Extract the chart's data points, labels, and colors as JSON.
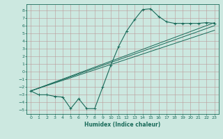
{
  "xlabel": "Humidex (Indice chaleur)",
  "bg_color": "#cce8e0",
  "grid_color": "#bb9999",
  "line_color": "#1a6b5a",
  "xlim": [
    -0.5,
    23.5
  ],
  "ylim": [
    -5.5,
    8.8
  ],
  "xticks": [
    0,
    1,
    2,
    3,
    4,
    5,
    6,
    7,
    8,
    9,
    10,
    11,
    12,
    13,
    14,
    15,
    16,
    17,
    18,
    19,
    20,
    21,
    22,
    23
  ],
  "yticks": [
    -5,
    -4,
    -3,
    -2,
    -1,
    0,
    1,
    2,
    3,
    4,
    5,
    6,
    7,
    8
  ],
  "main_x": [
    0,
    1,
    2,
    3,
    4,
    5,
    6,
    7,
    8,
    9,
    10,
    11,
    12,
    13,
    14,
    15,
    16,
    17,
    18,
    19,
    20,
    21,
    22,
    23
  ],
  "main_y": [
    -2.5,
    -3.0,
    -3.0,
    -3.2,
    -3.3,
    -4.8,
    -3.5,
    -4.8,
    -4.8,
    -2.0,
    0.8,
    3.3,
    5.3,
    6.8,
    8.1,
    8.2,
    7.2,
    6.5,
    6.3,
    6.3,
    6.3,
    6.3,
    6.4,
    6.3
  ],
  "line1_x": [
    0,
    23
  ],
  "line1_y": [
    -2.5,
    6.4
  ],
  "line2_x": [
    0,
    23
  ],
  "line2_y": [
    -2.5,
    6.0
  ],
  "line3_x": [
    0,
    23
  ],
  "line3_y": [
    -2.5,
    5.4
  ]
}
